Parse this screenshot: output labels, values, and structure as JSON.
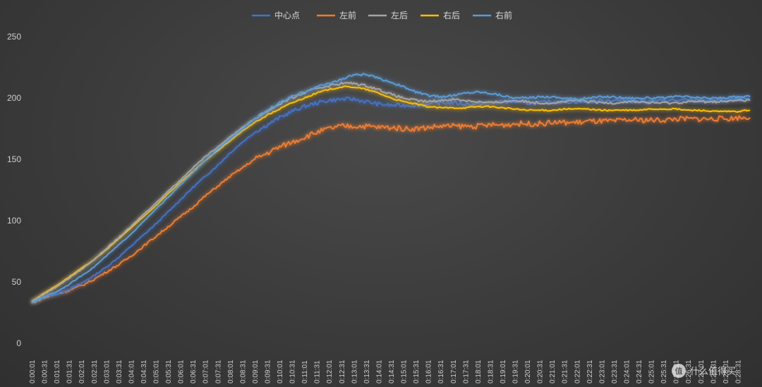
{
  "chart_data": {
    "type": "line",
    "title": "",
    "xlabel": "",
    "ylabel": "",
    "ylim": [
      0,
      250
    ],
    "y_ticks": [
      "0",
      "50",
      "100",
      "150",
      "200",
      "250"
    ],
    "x_ticks": [
      "0:00:01",
      "0:00:31",
      "0:01:01",
      "0:01:31",
      "0:02:01",
      "0:02:31",
      "0:03:01",
      "0:03:31",
      "0:04:01",
      "0:04:31",
      "0:05:01",
      "0:05:31",
      "0:06:01",
      "0:06:31",
      "0:07:01",
      "0:07:31",
      "0:08:01",
      "0:08:31",
      "0:09:01",
      "0:09:31",
      "0:10:01",
      "0:10:31",
      "0:11:01",
      "0:11:31",
      "0:12:01",
      "0:12:31",
      "0:13:01",
      "0:13:31",
      "0:14:01",
      "0:14:31",
      "0:15:01",
      "0:15:31",
      "0:16:01",
      "0:16:31",
      "0:17:01",
      "0:17:31",
      "0:18:01",
      "0:18:31",
      "0:19:01",
      "0:19:31",
      "0:20:01",
      "0:20:31",
      "0:21:01",
      "0:21:31",
      "0:22:01",
      "0:22:31",
      "0:23:01",
      "0:23:31",
      "0:24:01",
      "0:24:31",
      "0:25:01",
      "0:25:31",
      "0:26:01",
      "0:26:31",
      "0:27:01",
      "0:27:31",
      "0:28:01",
      "0:28:31"
    ],
    "legend_position": "top-center",
    "grid": false,
    "x_minutes": [
      0,
      0.5,
      1,
      1.5,
      2,
      2.5,
      3,
      3.5,
      4,
      4.5,
      5,
      5.5,
      6,
      6.5,
      7,
      7.5,
      8,
      8.5,
      9,
      9.5,
      10,
      10.5,
      11,
      11.5,
      12,
      12.5,
      13,
      13.5,
      14,
      14.5,
      15,
      15.5,
      16,
      16.5,
      17,
      17.5,
      18,
      18.5,
      19,
      19.5,
      20,
      20.5,
      21,
      21.5,
      22,
      22.5,
      23,
      23.5,
      24,
      24.5,
      25,
      25.5,
      26,
      26.5,
      27,
      27.5,
      28,
      28.5,
      29
    ],
    "series": [
      {
        "name": "中心点",
        "color": "#4472c4",
        "noise": 1.6,
        "values": [
          33,
          38,
          40,
          44,
          49,
          55,
          62,
          70,
          79,
          88,
          97,
          107,
          117,
          127,
          136,
          145,
          155,
          164,
          172,
          178,
          184,
          189,
          193,
          196,
          198,
          199,
          199,
          197,
          195,
          194,
          194,
          194,
          195,
          196,
          196,
          195,
          195,
          196,
          197,
          197,
          196,
          196,
          197,
          197,
          197,
          197,
          198,
          198,
          198,
          197,
          197,
          198,
          198,
          198,
          198,
          198,
          198,
          199,
          199
        ]
      },
      {
        "name": "左前",
        "color": "#ed7d31",
        "noise": 2.2,
        "values": [
          33,
          37,
          40,
          43,
          47,
          52,
          58,
          64,
          71,
          79,
          87,
          95,
          103,
          111,
          120,
          128,
          136,
          143,
          150,
          155,
          160,
          164,
          168,
          172,
          175,
          177,
          177,
          177,
          176,
          176,
          175,
          175,
          176,
          177,
          177,
          177,
          177,
          178,
          178,
          179,
          179,
          179,
          180,
          180,
          180,
          181,
          181,
          181,
          182,
          182,
          182,
          182,
          183,
          183,
          183,
          183,
          183,
          184,
          184
        ]
      },
      {
        "name": "左后",
        "color": "#a5a5a5",
        "noise": 1.0,
        "values": [
          34,
          40,
          46,
          53,
          60,
          68,
          77,
          86,
          95,
          105,
          114,
          124,
          133,
          143,
          152,
          160,
          168,
          176,
          183,
          189,
          195,
          200,
          204,
          208,
          210,
          212,
          212,
          210,
          207,
          203,
          200,
          198,
          197,
          198,
          199,
          198,
          197,
          196,
          197,
          198,
          197,
          196,
          196,
          197,
          198,
          197,
          196,
          196,
          197,
          197,
          196,
          196,
          196,
          197,
          197,
          197,
          197,
          198,
          198
        ]
      },
      {
        "name": "右后",
        "color": "#ffc000",
        "noise": 0.6,
        "values": [
          34,
          41,
          47,
          54,
          61,
          68,
          76,
          85,
          94,
          103,
          112,
          122,
          131,
          140,
          149,
          157,
          165,
          173,
          180,
          186,
          191,
          196,
          200,
          204,
          207,
          209,
          209,
          207,
          204,
          200,
          197,
          195,
          193,
          192,
          192,
          192,
          193,
          193,
          192,
          191,
          190,
          190,
          190,
          191,
          191,
          191,
          190,
          190,
          190,
          190,
          191,
          191,
          191,
          190,
          190,
          189,
          189,
          189,
          190
        ]
      },
      {
        "name": "右前",
        "color": "#5b9bd5",
        "noise": 0.9,
        "values": [
          33,
          38,
          42,
          48,
          55,
          62,
          71,
          80,
          89,
          99,
          109,
          119,
          129,
          139,
          149,
          158,
          167,
          175,
          183,
          190,
          196,
          201,
          205,
          209,
          212,
          215,
          219,
          219,
          216,
          213,
          209,
          205,
          202,
          201,
          202,
          204,
          205,
          204,
          202,
          200,
          200,
          201,
          201,
          200,
          199,
          200,
          201,
          201,
          200,
          200,
          200,
          200,
          201,
          201,
          200,
          200,
          200,
          201,
          201
        ]
      }
    ]
  },
  "watermark": {
    "icon": "value-badge-icon",
    "text": "什么值得买"
  }
}
